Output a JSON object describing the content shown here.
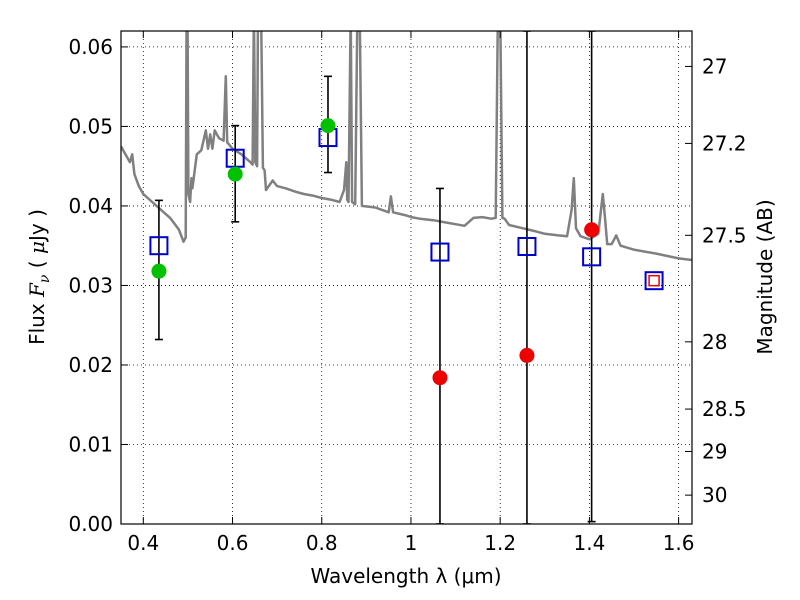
{
  "chart_data": {
    "type": "scatter",
    "xlabel": "Wavelength  λ (μm)",
    "ylabel": "Flux  F_ν  ( μJy )",
    "ylabel_parts": {
      "pre": "Flux  ",
      "F": "F",
      "nu": "ν",
      "post": "  ( ",
      "mu": "μ",
      "unit": "Jy )"
    },
    "y2label": "Magnitude (AB)",
    "xlim": [
      0.35,
      1.63
    ],
    "ylim": [
      0.0,
      0.062
    ],
    "grid": true,
    "x_ticks": [
      0.4,
      0.6,
      0.8,
      1.0,
      1.2,
      1.4,
      1.6
    ],
    "x_tick_labels": [
      "0.4",
      "0.6",
      "0.8",
      "1",
      "1.2",
      "1.4",
      "1.6"
    ],
    "y_ticks": [
      0.0,
      0.01,
      0.02,
      0.03,
      0.04,
      0.05,
      0.06
    ],
    "y_tick_labels": [
      "0.00",
      "0.01",
      "0.02",
      "0.03",
      "0.04",
      "0.05",
      "0.06"
    ],
    "y2_ticks": [
      27,
      27.2,
      27.5,
      28,
      28.5,
      29,
      30
    ],
    "y2_tick_labels": [
      "27",
      "27.2",
      "27.5",
      "28",
      "28.5",
      "29",
      "30"
    ],
    "colors": {
      "model": "#808080",
      "green": "#00c000",
      "red": "#ee0000",
      "box": "#0000cc",
      "small_box": "#ee0000",
      "errorbar": "#000000"
    },
    "model_spectrum": [
      [
        0.35,
        0.0475
      ],
      [
        0.37,
        0.0455
      ],
      [
        0.375,
        0.0465
      ],
      [
        0.38,
        0.044
      ],
      [
        0.39,
        0.0425
      ],
      [
        0.4,
        0.0415
      ],
      [
        0.42,
        0.0405
      ],
      [
        0.44,
        0.0395
      ],
      [
        0.46,
        0.0385
      ],
      [
        0.48,
        0.037
      ],
      [
        0.49,
        0.0355
      ],
      [
        0.495,
        0.036
      ],
      [
        0.497,
        0.0645
      ],
      [
        0.499,
        0.0645
      ],
      [
        0.501,
        0.0415
      ],
      [
        0.505,
        0.0405
      ],
      [
        0.508,
        0.0435
      ],
      [
        0.51,
        0.0422
      ],
      [
        0.52,
        0.0465
      ],
      [
        0.53,
        0.047
      ],
      [
        0.54,
        0.0495
      ],
      [
        0.545,
        0.0472
      ],
      [
        0.55,
        0.049
      ],
      [
        0.555,
        0.0472
      ],
      [
        0.56,
        0.0495
      ],
      [
        0.57,
        0.0485
      ],
      [
        0.58,
        0.0482
      ],
      [
        0.585,
        0.0563
      ],
      [
        0.588,
        0.048
      ],
      [
        0.6,
        0.0472
      ],
      [
        0.62,
        0.0465
      ],
      [
        0.64,
        0.0455
      ],
      [
        0.645,
        0.0452
      ],
      [
        0.648,
        0.0645
      ],
      [
        0.651,
        0.0455
      ],
      [
        0.655,
        0.045
      ],
      [
        0.657,
        0.0645
      ],
      [
        0.66,
        0.0645
      ],
      [
        0.664,
        0.0645
      ],
      [
        0.668,
        0.0448
      ],
      [
        0.672,
        0.0445
      ],
      [
        0.675,
        0.042
      ],
      [
        0.69,
        0.0432
      ],
      [
        0.7,
        0.0425
      ],
      [
        0.72,
        0.0422
      ],
      [
        0.74,
        0.0418
      ],
      [
        0.76,
        0.0415
      ],
      [
        0.78,
        0.0413
      ],
      [
        0.8,
        0.041
      ],
      [
        0.82,
        0.0408
      ],
      [
        0.84,
        0.0405
      ],
      [
        0.85,
        0.042
      ],
      [
        0.855,
        0.0455
      ],
      [
        0.857,
        0.0408
      ],
      [
        0.86,
        0.0405
      ],
      [
        0.865,
        0.0645
      ],
      [
        0.868,
        0.0405
      ],
      [
        0.875,
        0.0402
      ],
      [
        0.88,
        0.0645
      ],
      [
        0.885,
        0.0645
      ],
      [
        0.89,
        0.04
      ],
      [
        0.92,
        0.0398
      ],
      [
        0.95,
        0.0392
      ],
      [
        0.955,
        0.0412
      ],
      [
        0.96,
        0.0392
      ],
      [
        0.99,
        0.0388
      ],
      [
        1.0,
        0.0386
      ],
      [
        1.02,
        0.0384
      ],
      [
        1.05,
        0.0382
      ],
      [
        1.08,
        0.0379
      ],
      [
        1.1,
        0.0377
      ],
      [
        1.12,
        0.0375
      ],
      [
        1.14,
        0.0385
      ],
      [
        1.16,
        0.0386
      ],
      [
        1.18,
        0.0384
      ],
      [
        1.19,
        0.0385
      ],
      [
        1.195,
        0.0645
      ],
      [
        1.2,
        0.0645
      ],
      [
        1.205,
        0.0385
      ],
      [
        1.21,
        0.0384
      ],
      [
        1.22,
        0.0376
      ],
      [
        1.25,
        0.0372
      ],
      [
        1.28,
        0.0368
      ],
      [
        1.3,
        0.0365
      ],
      [
        1.33,
        0.0363
      ],
      [
        1.35,
        0.0362
      ],
      [
        1.36,
        0.0395
      ],
      [
        1.365,
        0.0435
      ],
      [
        1.37,
        0.0372
      ],
      [
        1.38,
        0.0362
      ],
      [
        1.4,
        0.0358
      ],
      [
        1.42,
        0.0365
      ],
      [
        1.43,
        0.0415
      ],
      [
        1.435,
        0.0385
      ],
      [
        1.44,
        0.0352
      ],
      [
        1.45,
        0.0352
      ],
      [
        1.46,
        0.0363
      ],
      [
        1.47,
        0.035
      ],
      [
        1.5,
        0.0345
      ],
      [
        1.55,
        0.034
      ],
      [
        1.6,
        0.0334
      ],
      [
        1.63,
        0.0332
      ]
    ],
    "green_points": [
      {
        "x": 0.435,
        "y": 0.0318
      },
      {
        "x": 0.606,
        "y": 0.044
      },
      {
        "x": 0.814,
        "y": 0.0501
      }
    ],
    "red_points": [
      {
        "x": 1.065,
        "y": 0.0184
      },
      {
        "x": 1.26,
        "y": 0.0212
      },
      {
        "x": 1.405,
        "y": 0.037
      }
    ],
    "box_points": [
      {
        "x": 0.435,
        "y": 0.035
      },
      {
        "x": 0.606,
        "y": 0.046
      },
      {
        "x": 0.814,
        "y": 0.0486
      },
      {
        "x": 1.065,
        "y": 0.0342
      },
      {
        "x": 1.26,
        "y": 0.0349
      },
      {
        "x": 1.405,
        "y": 0.0336
      },
      {
        "x": 1.545,
        "y": 0.0306
      }
    ],
    "small_box_points": [
      {
        "x": 1.545,
        "y": 0.0306
      }
    ],
    "error_bars": [
      {
        "x": 0.435,
        "low": 0.0232,
        "high": 0.0407
      },
      {
        "x": 0.606,
        "low": 0.038,
        "high": 0.0501
      },
      {
        "x": 0.814,
        "low": 0.0442,
        "high": 0.0563
      },
      {
        "x": 1.065,
        "low": 0.0,
        "high": 0.0422
      },
      {
        "x": 1.26,
        "low": 0.0,
        "high": 0.062
      },
      {
        "x": 1.405,
        "low": 0.0003,
        "high": 0.062
      }
    ]
  }
}
